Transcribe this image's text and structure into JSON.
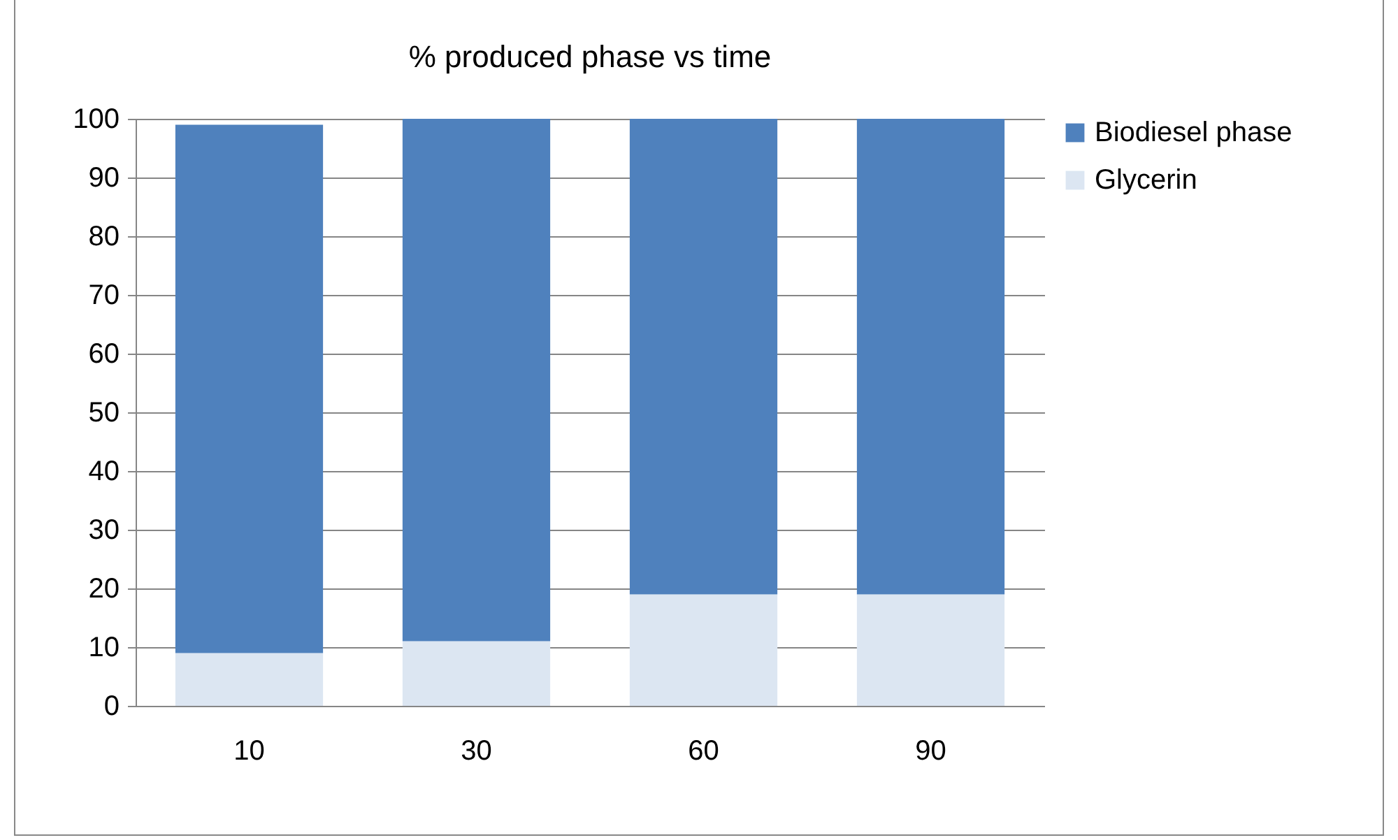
{
  "chart_data": {
    "type": "bar",
    "title": "% produced phase vs time",
    "categories": [
      "10",
      "30",
      "60",
      "90"
    ],
    "stacked": true,
    "series": [
      {
        "name": "Glycerin",
        "color": "#dce6f2",
        "values": [
          9,
          11,
          19,
          19
        ]
      },
      {
        "name": "Biodiesel phase",
        "color": "#4f81bd",
        "values": [
          90,
          89,
          81,
          81
        ]
      }
    ],
    "ylim": [
      0,
      100
    ],
    "yticks": [
      0,
      10,
      20,
      30,
      40,
      50,
      60,
      70,
      80,
      90,
      100
    ],
    "grid": "y",
    "legend": "right"
  }
}
